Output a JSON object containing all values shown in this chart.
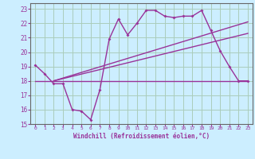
{
  "xlabel": "Windchill (Refroidissement éolien,°C)",
  "background_color": "#cceeff",
  "grid_color": "#aaccbb",
  "line_color": "#993399",
  "text_color": "#993399",
  "xlim": [
    -0.5,
    23.5
  ],
  "ylim": [
    15,
    23.4
  ],
  "xticks": [
    0,
    1,
    2,
    3,
    4,
    5,
    6,
    7,
    8,
    9,
    10,
    11,
    12,
    13,
    14,
    15,
    16,
    17,
    18,
    19,
    20,
    21,
    22,
    23
  ],
  "yticks": [
    15,
    16,
    17,
    18,
    19,
    20,
    21,
    22,
    23
  ],
  "zigzag_x": [
    0,
    1,
    2,
    3,
    4,
    5,
    6,
    7,
    8,
    9,
    10,
    11,
    12,
    13,
    14,
    15,
    16,
    17,
    18,
    19,
    20,
    21,
    22,
    23
  ],
  "zigzag_y": [
    19.1,
    18.5,
    17.8,
    17.8,
    16.0,
    15.9,
    15.3,
    17.4,
    20.9,
    22.3,
    21.2,
    22.0,
    22.9,
    22.9,
    22.5,
    22.4,
    22.5,
    22.5,
    22.9,
    21.5,
    20.1,
    19.0,
    18.0,
    18.0
  ],
  "line1_x": [
    0,
    23
  ],
  "line1_y": [
    18.0,
    18.0
  ],
  "line2_x": [
    2,
    23
  ],
  "line2_y": [
    18.0,
    21.3
  ],
  "line3_x": [
    2,
    23
  ],
  "line3_y": [
    18.0,
    22.1
  ]
}
